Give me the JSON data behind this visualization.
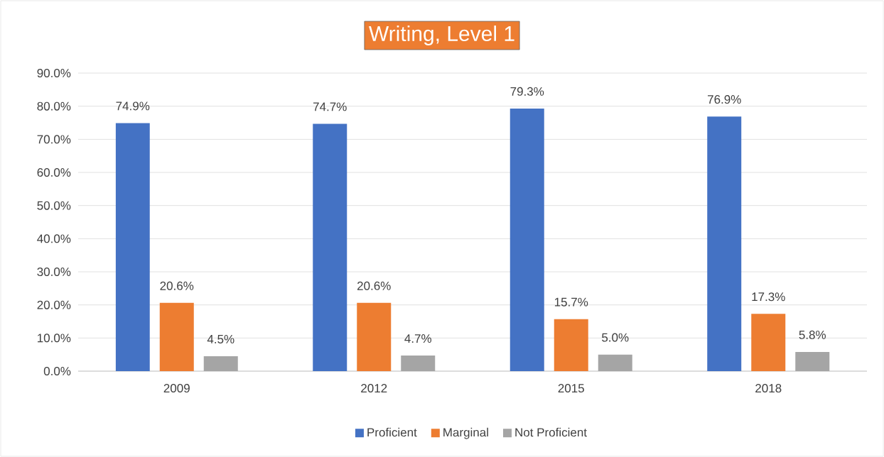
{
  "chart_data": {
    "type": "bar",
    "title": "Writing, Level 1",
    "categories": [
      "2009",
      "2012",
      "2015",
      "2018"
    ],
    "series": [
      {
        "name": "Proficient",
        "color": "#4472c4",
        "values": [
          74.9,
          74.7,
          79.3,
          76.9
        ],
        "value_labels": [
          "74.9%",
          "74.7%",
          "79.3%",
          "76.9%"
        ]
      },
      {
        "name": "Marginal",
        "color": "#ed7d31",
        "values": [
          20.6,
          20.6,
          15.7,
          17.3
        ],
        "value_labels": [
          "20.6%",
          "20.6%",
          "15.7%",
          "17.3%"
        ]
      },
      {
        "name": "Not Proficient",
        "color": "#a5a5a5",
        "values": [
          4.5,
          4.7,
          5.0,
          5.8
        ],
        "value_labels": [
          "4.5%",
          "4.7%",
          "5.0%",
          "5.8%"
        ]
      }
    ],
    "ylim": [
      0,
      90
    ],
    "yticks": [
      {
        "value": 0,
        "label": "0.0%"
      },
      {
        "value": 10,
        "label": "10.0%"
      },
      {
        "value": 20,
        "label": "20.0%"
      },
      {
        "value": 30,
        "label": "30.0%"
      },
      {
        "value": 40,
        "label": "40.0%"
      },
      {
        "value": 50,
        "label": "50.0%"
      },
      {
        "value": 60,
        "label": "60.0%"
      },
      {
        "value": 70,
        "label": "70.0%"
      },
      {
        "value": 80,
        "label": "80.0%"
      },
      {
        "value": 90,
        "label": "90.0%"
      }
    ],
    "grid": "y",
    "legend": "bottom"
  }
}
